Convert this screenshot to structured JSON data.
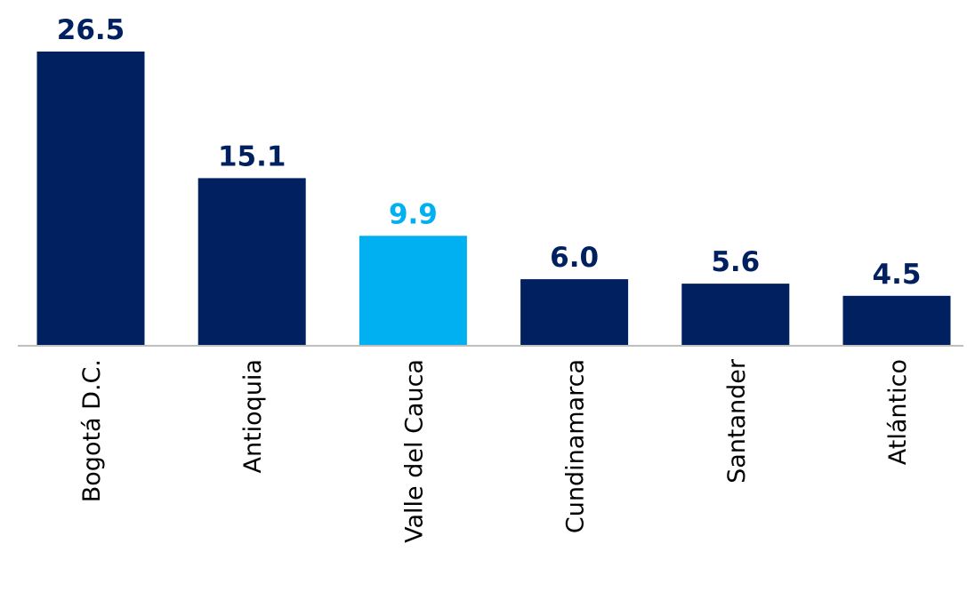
{
  "chart_data": {
    "type": "bar",
    "categories": [
      "Bogotá D.C.",
      "Antioquia",
      "Valle del Cauca",
      "Cundinamarca",
      "Santander",
      "Atlántico"
    ],
    "values": [
      26.5,
      15.1,
      9.9,
      6.0,
      5.6,
      4.5
    ],
    "value_labels": [
      "26.5",
      "15.1",
      "9.9",
      "6.0",
      "5.6",
      "4.5"
    ],
    "highlight_category": "Valle del Cauca",
    "ylim": [
      0,
      26.5
    ],
    "grid": false,
    "legend": "none",
    "colors": {
      "bar": "#002060",
      "highlight": "#00B0F0",
      "axis": "#BFBFBF",
      "label": "#002060"
    }
  }
}
